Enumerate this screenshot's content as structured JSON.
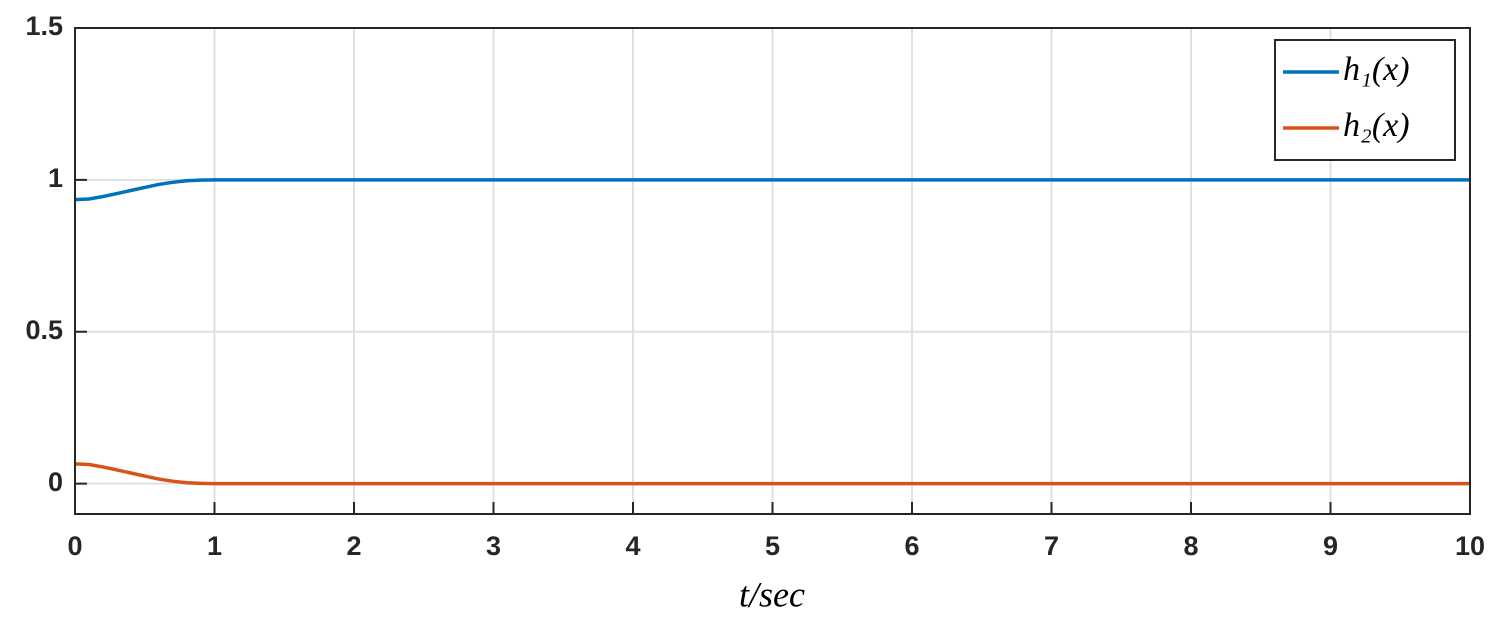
{
  "chart_data": {
    "type": "line",
    "x_label": "t/sec",
    "x": [
      0,
      0.1,
      0.2,
      0.3,
      0.4,
      0.5,
      0.6,
      0.7,
      0.8,
      0.9,
      1.0,
      1.2,
      10
    ],
    "series": [
      {
        "name": "h₁(x)",
        "color": "#0072bd",
        "values": [
          0.935,
          0.937,
          0.945,
          0.955,
          0.965,
          0.975,
          0.985,
          0.992,
          0.997,
          0.999,
          1.0,
          1.0,
          1.0
        ]
      },
      {
        "name": "h₂(x)",
        "color": "#d95319",
        "values": [
          0.065,
          0.063,
          0.055,
          0.045,
          0.035,
          0.025,
          0.015,
          0.008,
          0.003,
          0.001,
          0,
          0,
          0
        ]
      }
    ],
    "xlim": [
      0,
      10
    ],
    "xticks": [
      0,
      1,
      2,
      3,
      4,
      5,
      6,
      7,
      8,
      9,
      10
    ],
    "ylim": [
      -0.1,
      1.5
    ],
    "yticks": [
      0,
      0.5,
      1,
      1.5
    ],
    "grid": true,
    "legend": "upper right"
  }
}
